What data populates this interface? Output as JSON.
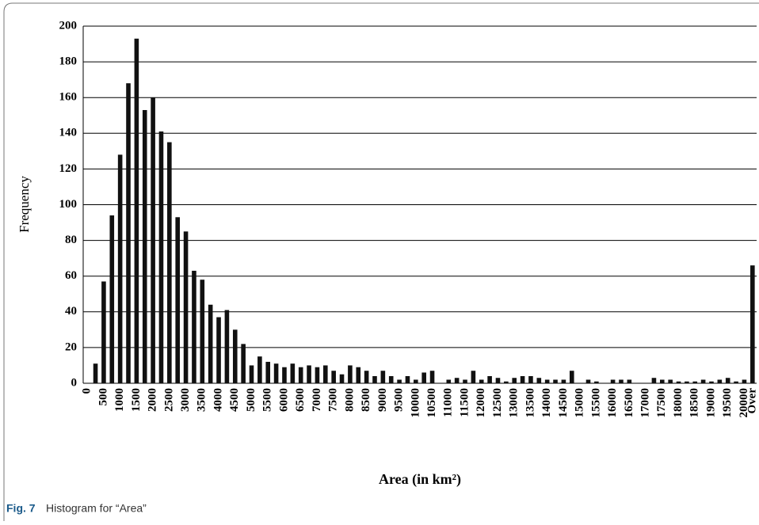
{
  "chart_data": {
    "type": "bar",
    "categories": [
      "0",
      null,
      "500",
      null,
      "1000",
      null,
      "1500",
      null,
      "2000",
      null,
      "2500",
      null,
      "3000",
      null,
      "3500",
      null,
      "4000",
      null,
      "4500",
      null,
      "5000",
      null,
      "5500",
      null,
      "6000",
      null,
      "6500",
      null,
      "7000",
      null,
      "7500",
      null,
      "8000",
      null,
      "8500",
      null,
      "9000",
      null,
      "9500",
      null,
      "10000",
      null,
      "10500",
      null,
      "11000",
      null,
      "11500",
      null,
      "12000",
      null,
      "12500",
      null,
      "13000",
      null,
      "13500",
      null,
      "14000",
      null,
      "14500",
      null,
      "15000",
      null,
      "15500",
      null,
      "16000",
      null,
      "16500",
      null,
      "17000",
      null,
      "17500",
      null,
      "18000",
      null,
      "18500",
      null,
      "19000",
      null,
      "19500",
      null,
      "20000",
      "Over"
    ],
    "values": [
      0,
      11,
      57,
      94,
      128,
      168,
      193,
      153,
      160,
      141,
      135,
      93,
      85,
      63,
      58,
      44,
      37,
      41,
      30,
      22,
      10,
      15,
      12,
      11,
      9,
      11,
      9,
      10,
      9,
      10,
      7,
      5,
      10,
      9,
      7,
      4,
      7,
      4,
      2,
      4,
      2,
      6,
      7,
      0,
      2,
      3,
      2,
      7,
      2,
      4,
      3,
      1,
      3,
      4,
      4,
      3,
      2,
      2,
      2,
      7,
      0,
      2,
      1,
      0,
      2,
      2,
      2,
      0,
      0,
      3,
      2,
      2,
      1,
      1,
      1,
      2,
      1,
      2,
      3,
      1,
      2,
      66
    ],
    "color": "#111111",
    "ylim": [
      0,
      200
    ],
    "yticks": [
      0,
      20,
      40,
      60,
      80,
      100,
      120,
      140,
      160,
      180,
      200
    ],
    "grid": true,
    "xlabel": "Area (in km²)",
    "ylabel": "Frequency"
  },
  "caption": {
    "label": "Fig. 7",
    "text": "Histogram for “Area”"
  }
}
